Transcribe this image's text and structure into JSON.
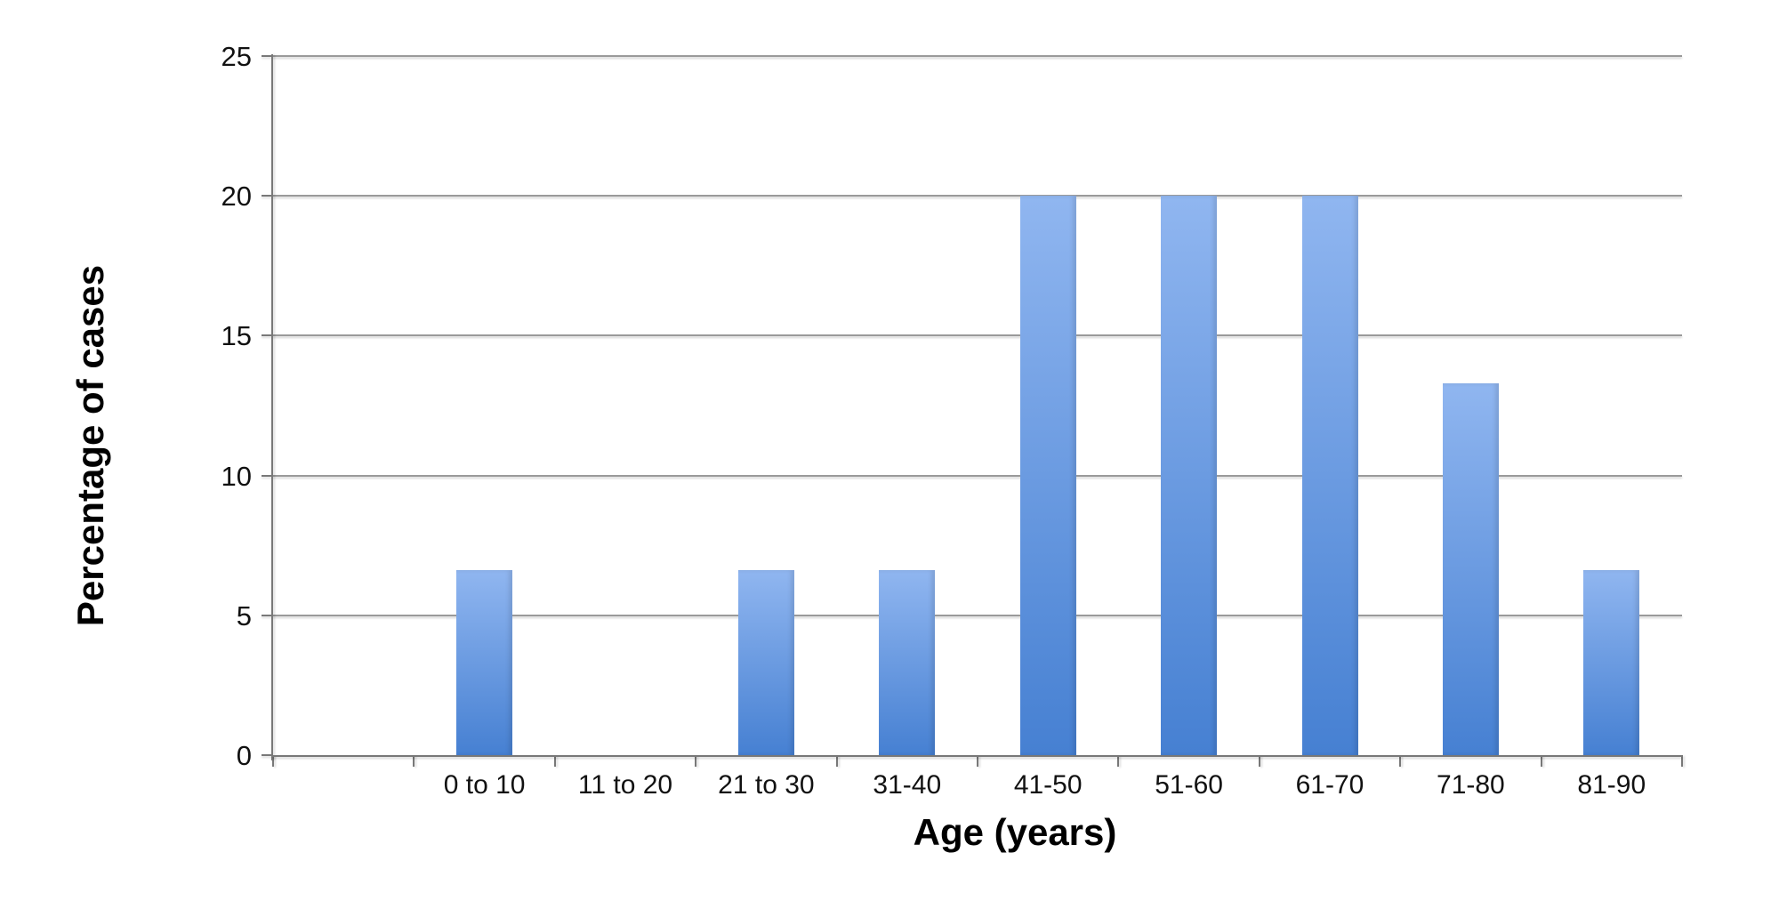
{
  "chart_data": {
    "type": "bar",
    "title": "",
    "xlabel": "Age (years)",
    "ylabel": "Percentage of cases",
    "categories": [
      "",
      "0 to 10",
      "11 to 20",
      "21 to 30",
      "31-40",
      "41-50",
      "51-60",
      "61-70",
      "71-80",
      "81-90"
    ],
    "values": [
      null,
      6.6,
      0,
      6.6,
      6.6,
      20,
      20,
      20,
      13.3,
      6.6
    ],
    "ylim": [
      0,
      25
    ],
    "yticks": [
      0,
      5,
      10,
      15,
      20,
      25
    ],
    "grid": "horizontal gridlines on",
    "legend_position": "none",
    "colors": {
      "bar_gradient_top": "#90b6f0",
      "bar_gradient_bottom": "#4680d2",
      "gridline": "#9a9a9a",
      "axis": "#787878",
      "text": "#111111",
      "background": "#ffffff"
    }
  }
}
